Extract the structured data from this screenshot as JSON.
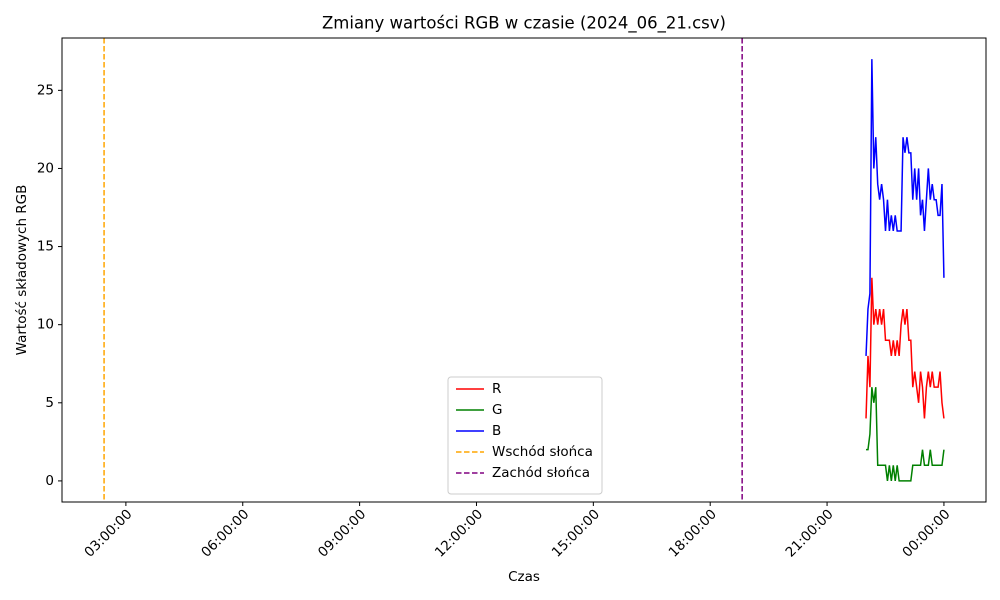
{
  "chart_data": {
    "type": "line",
    "title": "Zmiany wartości RGB w czasie (2024_06_21.csv)",
    "x_label": "Czas",
    "y_label": "Wartość składowych RGB",
    "x": [
      22.0,
      22.05,
      22.1,
      22.15,
      22.2,
      22.25,
      22.3,
      22.35,
      22.4,
      22.45,
      22.5,
      22.55,
      22.6,
      22.65,
      22.7,
      22.75,
      22.8,
      22.85,
      22.9,
      22.95,
      23.0,
      23.05,
      23.1,
      23.15,
      23.2,
      23.25,
      23.3,
      23.35,
      23.4,
      23.45,
      23.5,
      23.55,
      23.6,
      23.65,
      23.7,
      23.75,
      23.8,
      23.85,
      23.9,
      23.95,
      24.0
    ],
    "series": [
      {
        "name": "R",
        "color": "#ff0000",
        "values": [
          4,
          8,
          6,
          13,
          10,
          11,
          10,
          11,
          10,
          11,
          9,
          9,
          9,
          8,
          9,
          8,
          9,
          8,
          10,
          11,
          10,
          11,
          9,
          9,
          6,
          7,
          6,
          5,
          7,
          6,
          4,
          6,
          7,
          6,
          7,
          6,
          6,
          6,
          7,
          5,
          4
        ]
      },
      {
        "name": "G",
        "color": "#008000",
        "values": [
          2,
          2,
          3,
          6,
          5,
          6,
          1,
          1,
          1,
          1,
          1,
          0,
          1,
          0,
          1,
          0,
          1,
          0,
          0,
          0,
          0,
          0,
          0,
          0,
          1,
          1,
          1,
          1,
          1,
          2,
          1,
          1,
          1,
          2,
          1,
          1,
          1,
          1,
          1,
          1,
          2
        ]
      },
      {
        "name": "B",
        "color": "#0000ff",
        "values": [
          8,
          11,
          12,
          27,
          20,
          22,
          19,
          18,
          19,
          18,
          16,
          18,
          16,
          17,
          16,
          17,
          16,
          16,
          16,
          22,
          21,
          22,
          21,
          21,
          18,
          20,
          18,
          20,
          17,
          18,
          16,
          18,
          20,
          18,
          19,
          18,
          18,
          17,
          17,
          19,
          13
        ]
      }
    ],
    "vlines": [
      {
        "name": "Wschód słońca",
        "color": "#ffa500",
        "x": 2.44
      },
      {
        "name": "Zachód słońca",
        "color": "#800080",
        "x": 18.82
      }
    ],
    "xlim": [
      1.36,
      25.08
    ],
    "ylim": [
      -1.35,
      28.35
    ],
    "xticks": [
      {
        "value": 3,
        "label": "03:00:00"
      },
      {
        "value": 6,
        "label": "06:00:00"
      },
      {
        "value": 9,
        "label": "09:00:00"
      },
      {
        "value": 12,
        "label": "12:00:00"
      },
      {
        "value": 15,
        "label": "15:00:00"
      },
      {
        "value": 18,
        "label": "18:00:00"
      },
      {
        "value": 21,
        "label": "21:00:00"
      },
      {
        "value": 24,
        "label": "00:00:00"
      }
    ],
    "yticks": [
      0,
      5,
      10,
      15,
      20,
      25
    ],
    "legend": "lower center",
    "grid": false
  }
}
